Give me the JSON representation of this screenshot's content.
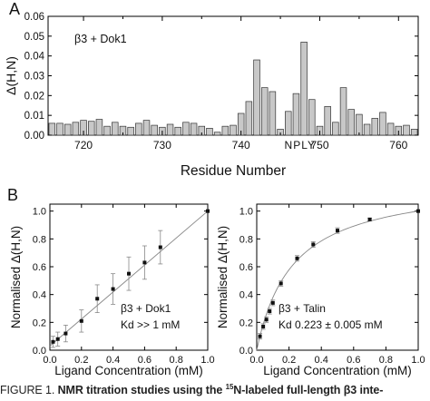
{
  "chart_data": [
    {
      "type": "bar",
      "panel_label": "A",
      "annotation": "β3 + Dok1",
      "xlabel": "Residue Number",
      "ylabel": "Δ(H,N)",
      "xlim": [
        715.5,
        762.5
      ],
      "ylim": [
        0,
        0.06
      ],
      "x_ticks": [
        "720",
        "730",
        "740",
        "750",
        "760"
      ],
      "y_ticks": [
        "0.00",
        "0.01",
        "0.02",
        "0.03",
        "0.04",
        "0.05",
        "0.06"
      ],
      "sequence_label": "NPLY",
      "grid": false,
      "x": [
        716,
        717,
        718,
        719,
        720,
        721,
        722,
        723,
        724,
        725,
        726,
        727,
        728,
        729,
        730,
        731,
        732,
        733,
        734,
        735,
        736,
        737,
        738,
        739,
        740,
        741,
        742,
        743,
        744,
        745,
        750,
        751,
        752,
        753,
        754,
        755,
        756,
        757,
        758,
        759,
        760,
        761,
        762
      ],
      "values": [
        0.006,
        0.006,
        0.0055,
        0.0065,
        0.0075,
        0.007,
        0.008,
        0.0045,
        0.0065,
        0.0045,
        0.004,
        0.006,
        0.0075,
        0.005,
        0.004,
        0.0055,
        0.004,
        0.0065,
        0.006,
        0.0045,
        0.0035,
        0.0015,
        0.0045,
        0.005,
        0.011,
        0.017,
        0.038,
        0.024,
        0.022,
        0.003,
        0.0045,
        0.0145,
        0.0065,
        0.024,
        0.013,
        0.0105,
        0.0055,
        0.0085,
        0.0115,
        0.006,
        0.0045,
        0.005,
        0.003
      ],
      "nply_residues": [
        746,
        747,
        748,
        749
      ],
      "nply_values": [
        0.012,
        0.021,
        0.047,
        0.018
      ]
    },
    {
      "type": "scatter",
      "panel_label": "B",
      "legend_lines": [
        "β3 + Dok1",
        "Kd >> 1 mM"
      ],
      "xlabel": "Ligand Concentration (mM)",
      "ylabel": "Normalised Δ(H,N)",
      "xlim": [
        0,
        1.0
      ],
      "ylim": [
        0,
        1.05
      ],
      "x_ticks": [
        "0.0",
        "0.2",
        "0.4",
        "0.6",
        "0.8",
        "1.0"
      ],
      "y_ticks": [
        "0.0",
        "0.2",
        "0.4",
        "0.6",
        "0.8",
        "1.0"
      ],
      "grid": false,
      "x": [
        0.02,
        0.05,
        0.1,
        0.2,
        0.3,
        0.4,
        0.5,
        0.6,
        0.7,
        1.0
      ],
      "values": [
        0.06,
        0.08,
        0.12,
        0.21,
        0.37,
        0.44,
        0.55,
        0.63,
        0.74,
        1.0
      ],
      "errors": [
        0.04,
        0.05,
        0.06,
        0.08,
        0.1,
        0.11,
        0.12,
        0.12,
        0.12,
        0.0
      ],
      "fit_line": "linear"
    },
    {
      "type": "scatter",
      "panel_label": "",
      "legend_lines": [
        "β3 + Talin",
        "Kd 0.223 ± 0.005 mM"
      ],
      "xlabel": "Ligand Concentration (mM)",
      "ylabel": "Normalised Δ(H,N)",
      "xlim": [
        0,
        1.0
      ],
      "ylim": [
        0,
        1.05
      ],
      "x_ticks": [
        "0.0",
        "0.2",
        "0.4",
        "0.6",
        "0.8",
        "1.0"
      ],
      "y_ticks": [
        "0.0",
        "0.2",
        "0.4",
        "0.6",
        "0.8",
        "1.0"
      ],
      "grid": false,
      "x": [
        0.02,
        0.04,
        0.06,
        0.08,
        0.1,
        0.15,
        0.25,
        0.35,
        0.5,
        0.7,
        1.0
      ],
      "values": [
        0.1,
        0.17,
        0.22,
        0.28,
        0.34,
        0.48,
        0.66,
        0.76,
        0.86,
        0.94,
        1.0
      ],
      "errors": [
        0.02,
        0.02,
        0.02,
        0.02,
        0.02,
        0.02,
        0.02,
        0.02,
        0.02,
        0.01,
        0.0
      ],
      "fit_kd": 0.223
    }
  ],
  "caption": {
    "lead": "FIGURE 1. ",
    "bold_pre": "NMR titration studies using the ",
    "sup": "15",
    "bold_post": "N-labeled full-length β3 inte-"
  }
}
